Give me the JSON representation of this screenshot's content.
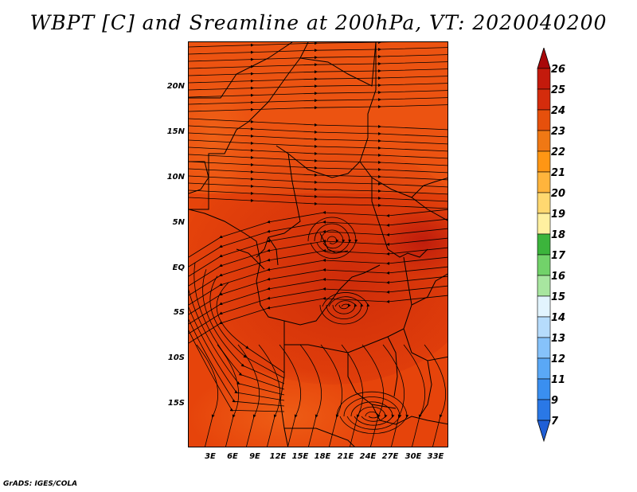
{
  "title": "WBPT [C] and Sreamline at 200hPa, VT: 2020040200",
  "credit": "GrADS: IGES/COLA",
  "map": {
    "variable": "WBPT [C]",
    "level": "200hPa",
    "valid_time": "2020040200",
    "lat_labels": [
      "20N",
      "15N",
      "10N",
      "5N",
      "EQ",
      "5S",
      "10S",
      "15S"
    ],
    "lon_labels": [
      "3E",
      "6E",
      "9E",
      "12E",
      "15E",
      "18E",
      "21E",
      "24E",
      "27E",
      "30E",
      "33E"
    ],
    "field_colors": {
      "base": "#e6440b",
      "warm": "#cc2a0a",
      "cool": "#f06418",
      "hot": "#b8160c"
    }
  },
  "colorbar": {
    "labels": [
      "7",
      "9",
      "11",
      "12",
      "13",
      "14",
      "15",
      "16",
      "17",
      "18",
      "19",
      "20",
      "21",
      "22",
      "23",
      "24",
      "25",
      "26"
    ],
    "colors": [
      "#1f5fd6",
      "#2a78e6",
      "#3a8ff0",
      "#5aa8f6",
      "#86c2fa",
      "#b6dcfc",
      "#e2f4fe",
      "#a8e6a0",
      "#72d26a",
      "#3cb43c",
      "#fff0a0",
      "#ffd870",
      "#ffb43c",
      "#ff9614",
      "#f07814",
      "#e6500c",
      "#d42c0c",
      "#c41a0c",
      "#a8080a"
    ]
  }
}
